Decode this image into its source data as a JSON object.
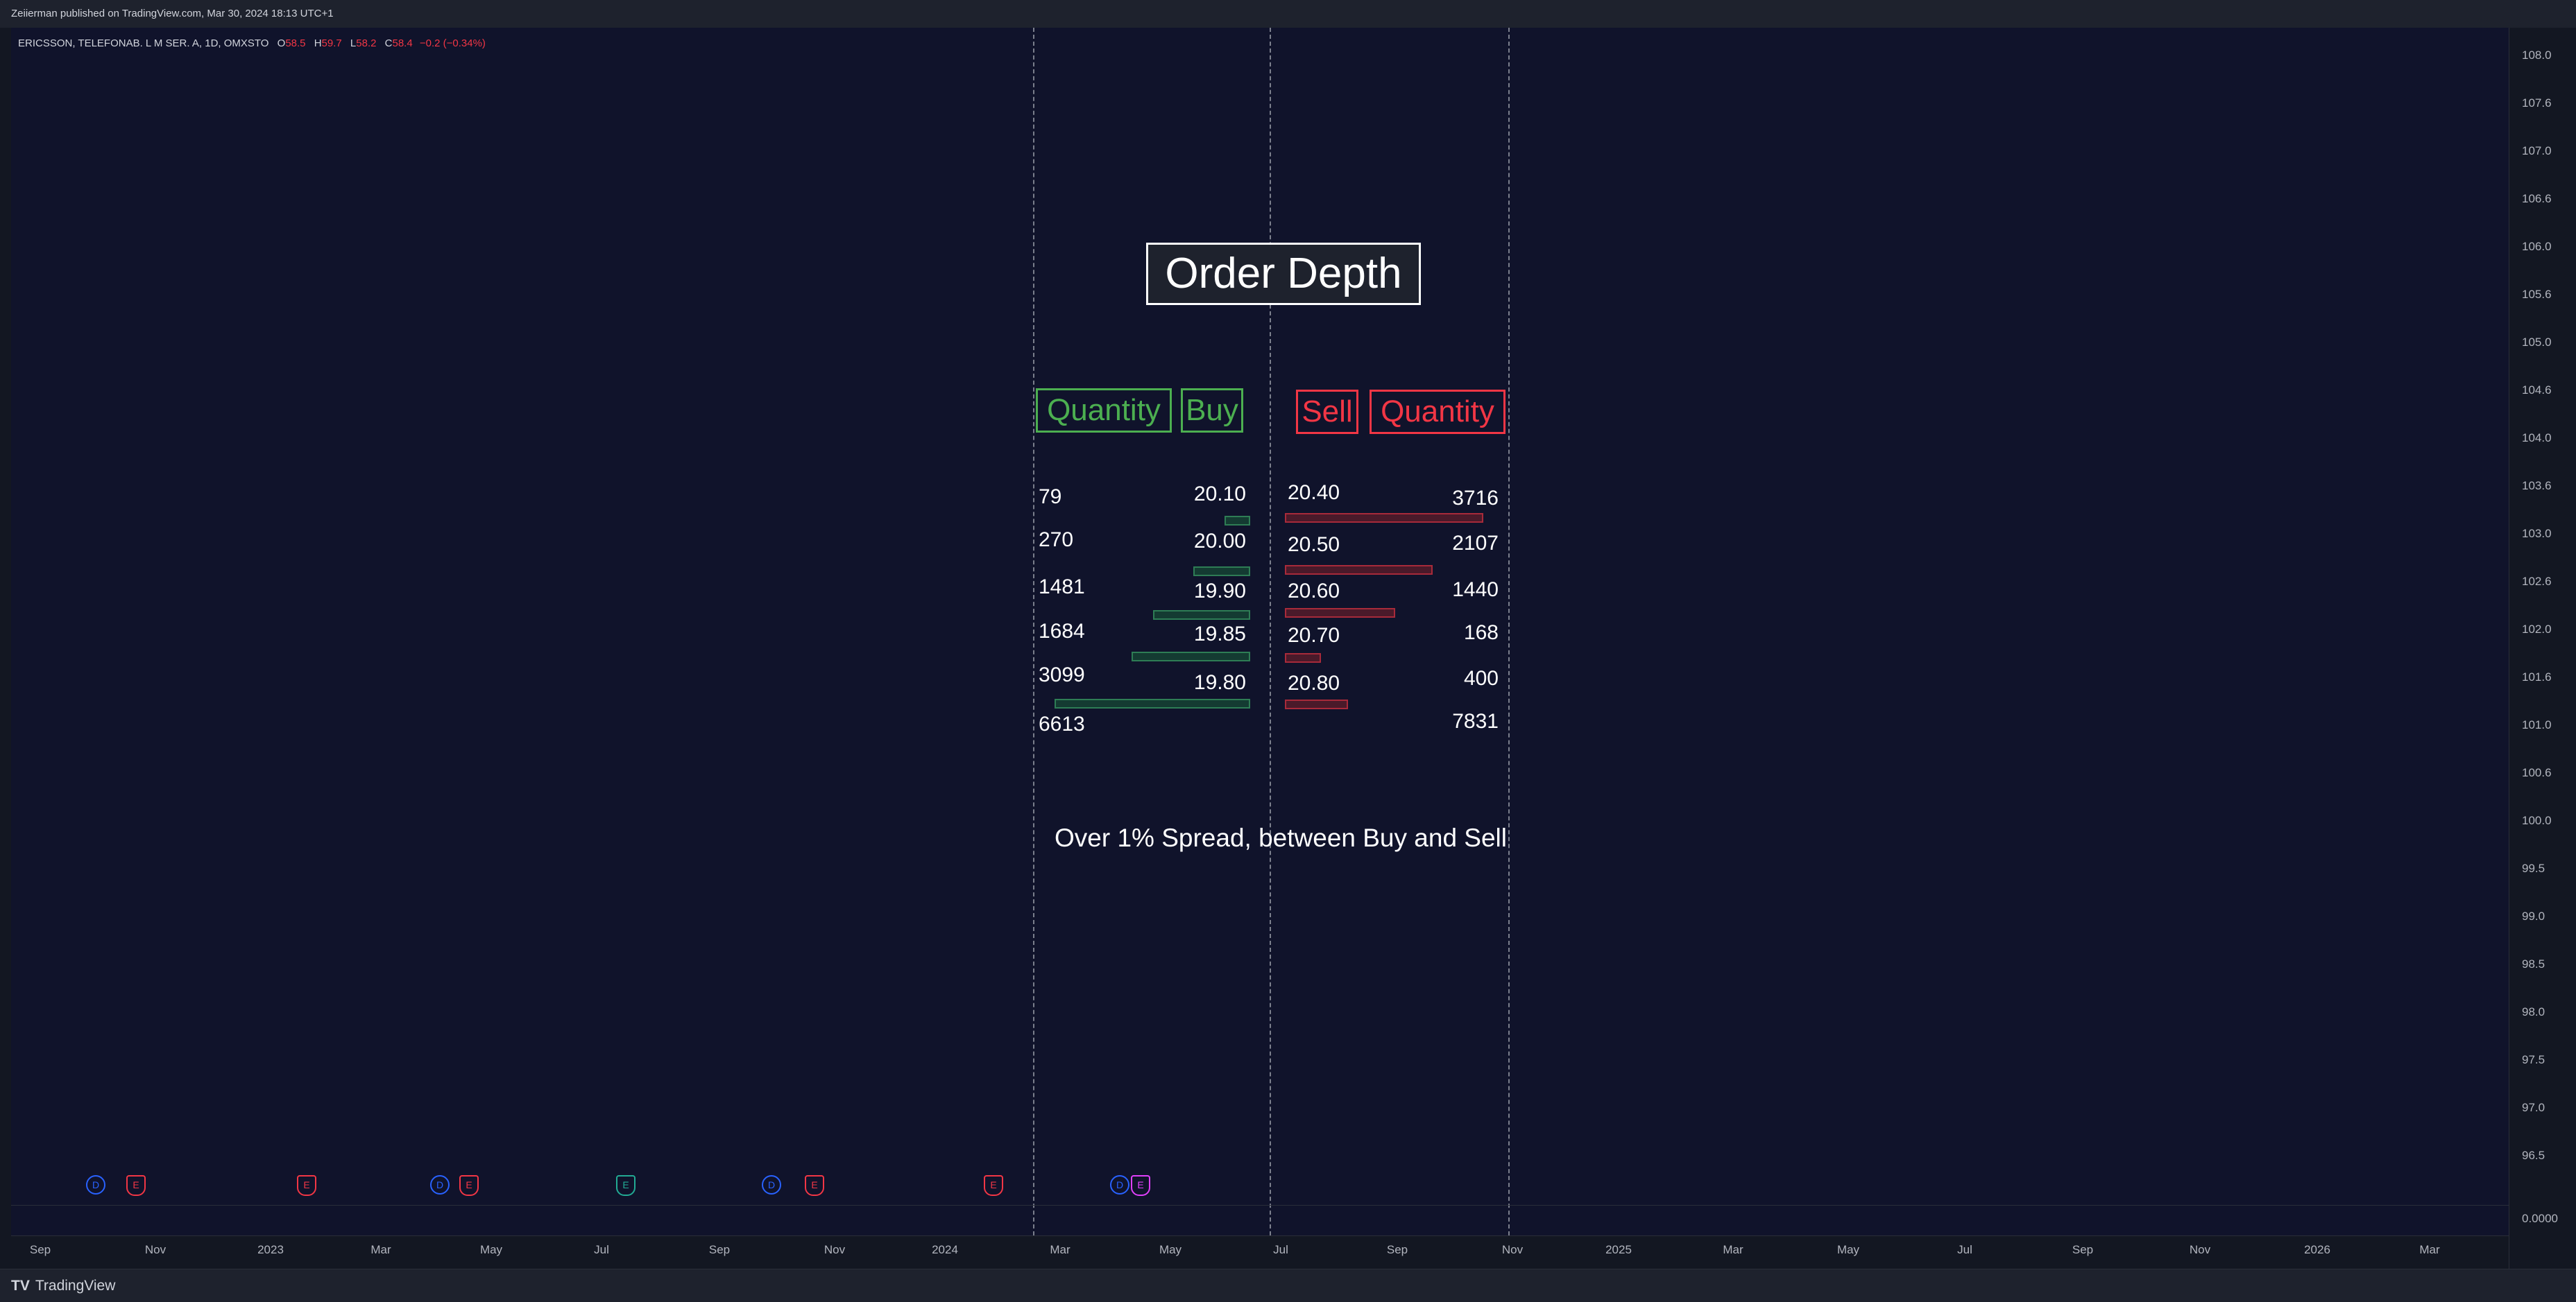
{
  "header": {
    "published": "Zeiierman published on TradingView.com, Mar 30, 2024 18:13 UTC+1"
  },
  "legend": {
    "symbol": "ERICSSON, TELEFONAB. L M SER. A, 1D, OMXSTO",
    "o_label": "O",
    "o": "58.5",
    "h_label": "H",
    "h": "59.7",
    "l_label": "L",
    "l": "58.2",
    "c_label": "C",
    "c": "58.4",
    "change": "−0.2 (−0.34%)"
  },
  "overlay": {
    "title": "Order Depth",
    "buy_headers": {
      "quantity": "Quantity",
      "price": "Buy"
    },
    "sell_headers": {
      "price": "Sell",
      "quantity": "Quantity"
    },
    "buy": [
      {
        "qty": "79",
        "price": "20.10",
        "fill": 0.12
      },
      {
        "qty": "270",
        "price": "20.00",
        "fill": 0.28
      },
      {
        "qty": "1481",
        "price": "19.90",
        "fill": 0.49
      },
      {
        "qty": "1684",
        "price": "19.85",
        "fill": 0.6
      },
      {
        "qty": "3099",
        "price": "19.80",
        "fill": 1.0
      }
    ],
    "sell": [
      {
        "price": "20.40",
        "qty": "3716",
        "fill": 1.0
      },
      {
        "price": "20.50",
        "qty": "2107",
        "fill": 0.74
      },
      {
        "price": "20.60",
        "qty": "1440",
        "fill": 0.55
      },
      {
        "price": "20.70",
        "qty": "168",
        "fill": 0.17
      },
      {
        "price": "20.80",
        "qty": "400",
        "fill": 0.31
      }
    ],
    "buy_total": "6613",
    "sell_total": "7831",
    "note": "Over 1% Spread, between Buy and Sell"
  },
  "price_axis": [
    "108.0",
    "107.6",
    "107.0",
    "106.6",
    "106.0",
    "105.6",
    "105.0",
    "104.6",
    "104.0",
    "103.6",
    "103.0",
    "102.6",
    "102.0",
    "101.6",
    "101.0",
    "100.6",
    "100.0",
    "99.5",
    "99.0",
    "98.5",
    "98.0",
    "97.5",
    "97.0",
    "96.5",
    "0.0000"
  ],
  "time_axis": [
    "Sep",
    "Nov",
    "2023",
    "Mar",
    "May",
    "Jul",
    "Sep",
    "Nov",
    "2024",
    "Mar",
    "May",
    "Jul",
    "Sep",
    "Nov",
    "2025",
    "Mar",
    "May",
    "Jul",
    "Sep",
    "Nov",
    "2026",
    "Mar"
  ],
  "events": [
    "D",
    "E",
    "E",
    "D",
    "E",
    "E",
    "D",
    "E",
    "E",
    "D",
    "E"
  ],
  "footer": {
    "brand": "TradingView"
  },
  "colors": {
    "buy": "#4caf50",
    "sell": "#f23645",
    "background": "#10132b"
  }
}
